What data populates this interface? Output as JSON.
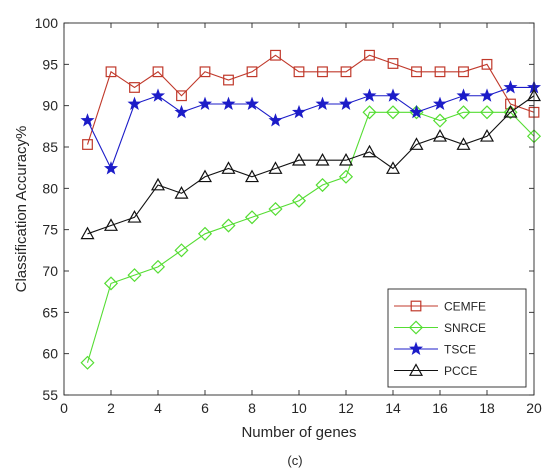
{
  "chart_data": {
    "type": "line",
    "xlabel": "Number of genes",
    "ylabel": "Classification Accuracy%",
    "caption": "(c)",
    "xlim": [
      0,
      20
    ],
    "ylim": [
      55,
      100
    ],
    "xticks": [
      0,
      2,
      4,
      6,
      8,
      10,
      12,
      14,
      16,
      18,
      20
    ],
    "yticks": [
      55,
      60,
      65,
      70,
      75,
      80,
      85,
      90,
      95,
      100
    ],
    "grid": false,
    "legend_position": "bottom-right",
    "x": [
      1,
      2,
      3,
      4,
      5,
      6,
      7,
      8,
      9,
      10,
      11,
      12,
      13,
      14,
      15,
      16,
      17,
      18,
      19,
      20
    ],
    "series": [
      {
        "name": "CEMFE",
        "color": "#c0392b",
        "marker": "square",
        "values": [
          85.3,
          94.1,
          92.2,
          94.1,
          91.2,
          94.1,
          93.1,
          94.1,
          96.1,
          94.1,
          94.1,
          94.1,
          96.1,
          95.1,
          94.1,
          94.1,
          94.1,
          95.0,
          90.2,
          89.2
        ]
      },
      {
        "name": "SNRCE",
        "color": "#55dd33",
        "marker": "diamond",
        "values": [
          58.9,
          68.5,
          69.5,
          70.5,
          72.5,
          74.5,
          75.5,
          76.5,
          77.5,
          78.5,
          80.4,
          81.4,
          89.2,
          89.2,
          89.2,
          88.2,
          89.2,
          89.2,
          89.2,
          86.3
        ]
      },
      {
        "name": "TSCE",
        "color": "#1c1cc8",
        "marker": "star",
        "values": [
          88.2,
          82.4,
          90.2,
          91.2,
          89.2,
          90.2,
          90.2,
          90.2,
          88.2,
          89.2,
          90.2,
          90.2,
          91.2,
          91.2,
          89.2,
          90.2,
          91.2,
          91.2,
          92.2,
          92.2
        ]
      },
      {
        "name": "PCCE",
        "color": "#111111",
        "marker": "triangle",
        "values": [
          74.5,
          75.5,
          76.5,
          80.4,
          79.4,
          81.4,
          82.4,
          81.4,
          82.4,
          83.4,
          83.4,
          83.4,
          84.4,
          82.4,
          85.3,
          86.3,
          85.3,
          86.3,
          89.2,
          91.2
        ]
      }
    ]
  }
}
